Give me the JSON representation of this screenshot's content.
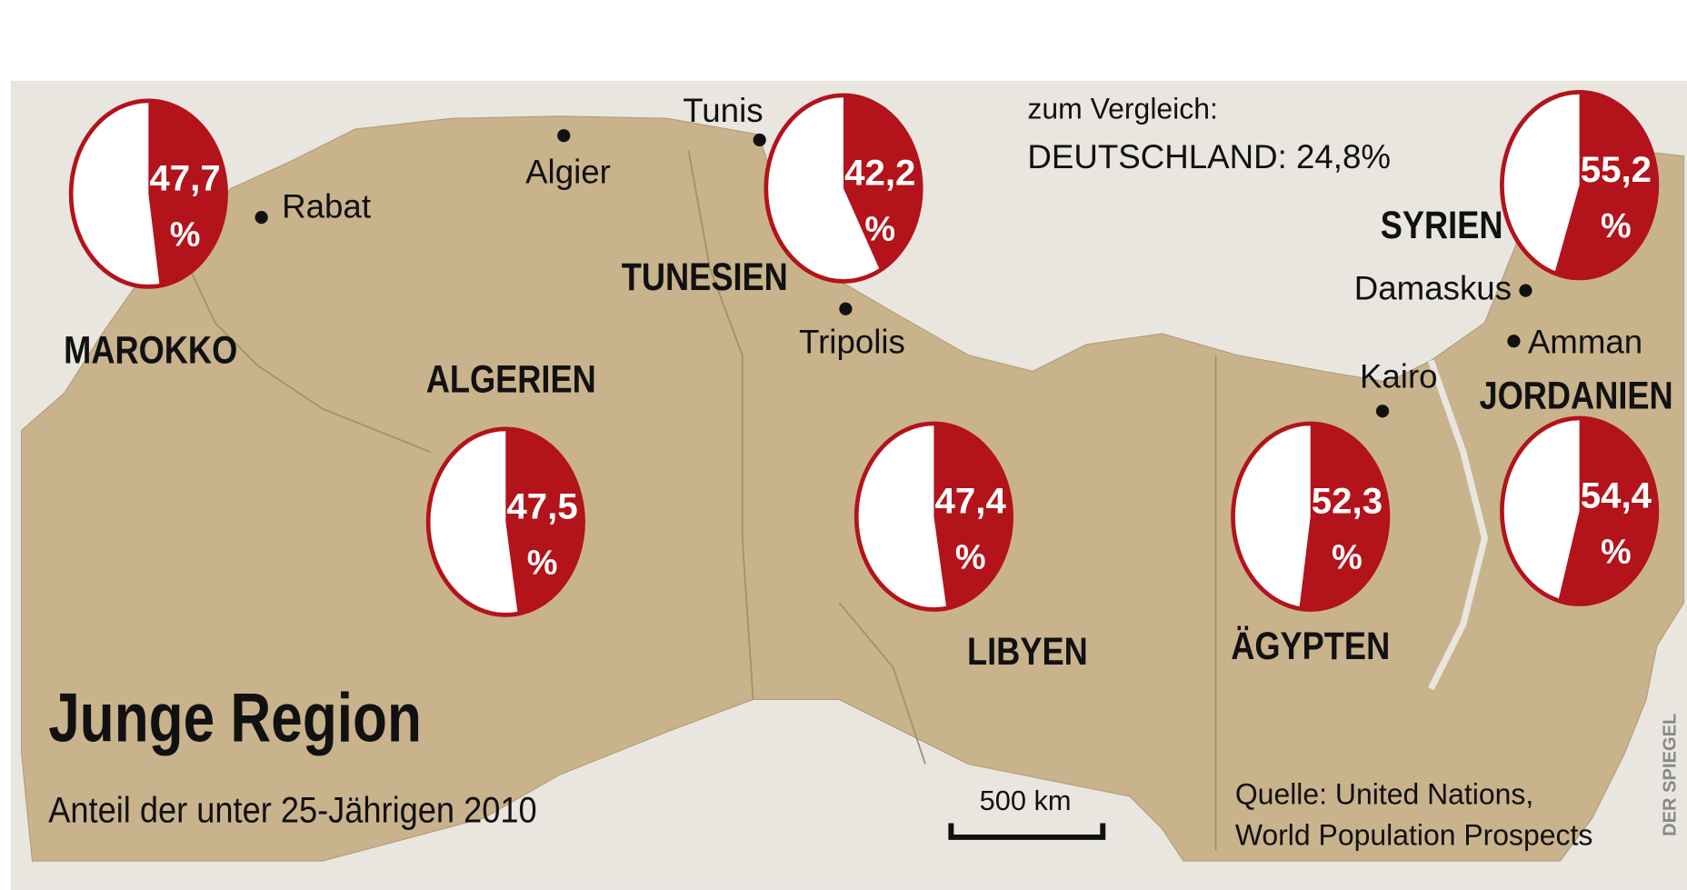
{
  "title": "Junge Region",
  "subtitle": "Anteil der unter 25-Jährigen 2010",
  "comparison": {
    "heading": "zum Vergleich:",
    "text": "DEUTSCHLAND: 24,8%"
  },
  "percent_sign": "%",
  "countries": [
    {
      "name": "MAROKKO",
      "value": 47.7,
      "value_label": "47,7"
    },
    {
      "name": "TUNESIEN",
      "value": 42.2,
      "value_label": "42,2"
    },
    {
      "name": "SYRIEN",
      "value": 55.2,
      "value_label": "55,2"
    },
    {
      "name": "ALGERIEN",
      "value": 47.5,
      "value_label": "47,5"
    },
    {
      "name": "LIBYEN",
      "value": 47.4,
      "value_label": "47,4"
    },
    {
      "name": "ÄGYPTEN",
      "value": 52.3,
      "value_label": "52,3"
    },
    {
      "name": "JORDANIEN",
      "value": 54.4,
      "value_label": "54,4"
    }
  ],
  "cities": [
    "Rabat",
    "Algier",
    "Tunis",
    "Tripolis",
    "Damaskus",
    "Amman",
    "Kairo"
  ],
  "scale_label": "500 km",
  "source": [
    "Quelle: United Nations,",
    "World Population Prospects"
  ],
  "credit": "DER SPIEGEL"
}
